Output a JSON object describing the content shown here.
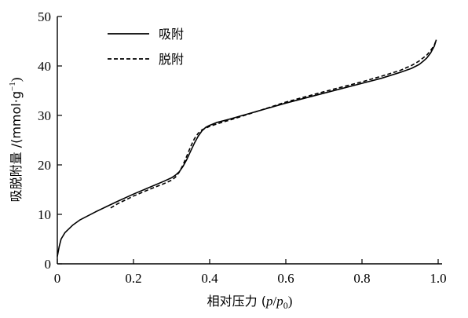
{
  "chart_data": {
    "type": "line",
    "xlabel": "相对压力 (p/p₀)",
    "xlabel_parts": {
      "prefix": "相对压力 (",
      "p": "p",
      "sep": "/",
      "p0": "p",
      "p0_sub": "0",
      "suffix": ")"
    },
    "ylabel": "吸脱附量 /(mmol·g⁻¹)",
    "ylabel_parts": {
      "main": "吸脱附量 /(mmol·g",
      "sup": "−1",
      "close": ")"
    },
    "xlim": [
      0,
      1.0
    ],
    "ylim": [
      0,
      50
    ],
    "xticks": [
      0,
      0.2,
      0.4,
      0.6,
      0.8,
      1.0
    ],
    "xtick_labels": [
      "0",
      "0.2",
      "0.4",
      "0.6",
      "0.8",
      "1.0"
    ],
    "yticks": [
      0,
      10,
      20,
      30,
      40,
      50
    ],
    "ytick_labels": [
      "0",
      "10",
      "20",
      "30",
      "40",
      "50"
    ],
    "legend_position": "top-left",
    "series": [
      {
        "name": "吸附",
        "style": "solid",
        "color": "#000000",
        "x": [
          0.0,
          0.005,
          0.01,
          0.02,
          0.04,
          0.06,
          0.08,
          0.1,
          0.13,
          0.16,
          0.2,
          0.24,
          0.28,
          0.3,
          0.31,
          0.32,
          0.33,
          0.34,
          0.35,
          0.36,
          0.37,
          0.38,
          0.39,
          0.4,
          0.42,
          0.45,
          0.5,
          0.6,
          0.7,
          0.8,
          0.85,
          0.9,
          0.93,
          0.95,
          0.96,
          0.97,
          0.98,
          0.99,
          0.995
        ],
        "values": [
          1.5,
          3.5,
          5.0,
          6.3,
          7.8,
          8.9,
          9.7,
          10.5,
          11.6,
          12.7,
          14.1,
          15.4,
          16.7,
          17.4,
          17.9,
          18.6,
          19.7,
          21.1,
          22.8,
          24.4,
          25.8,
          26.9,
          27.6,
          28.0,
          28.6,
          29.2,
          30.3,
          32.5,
          34.5,
          36.5,
          37.5,
          38.7,
          39.5,
          40.3,
          40.9,
          41.6,
          42.6,
          44.0,
          45.3
        ]
      },
      {
        "name": "脱附",
        "style": "dashed",
        "color": "#000000",
        "x": [
          0.14,
          0.16,
          0.2,
          0.24,
          0.28,
          0.3,
          0.31,
          0.32,
          0.33,
          0.34,
          0.35,
          0.36,
          0.37,
          0.38,
          0.4,
          0.42,
          0.45,
          0.5,
          0.6,
          0.7,
          0.8,
          0.85,
          0.9,
          0.93,
          0.95,
          0.97,
          0.98,
          0.99,
          0.995
        ],
        "values": [
          11.3,
          12.2,
          13.7,
          15.0,
          16.2,
          16.9,
          17.5,
          18.5,
          20.0,
          21.8,
          23.7,
          25.3,
          26.4,
          27.1,
          27.8,
          28.3,
          29.0,
          30.2,
          32.7,
          34.8,
          36.8,
          37.9,
          39.1,
          40.1,
          41.0,
          42.2,
          43.1,
          44.2,
          45.3
        ]
      }
    ]
  }
}
